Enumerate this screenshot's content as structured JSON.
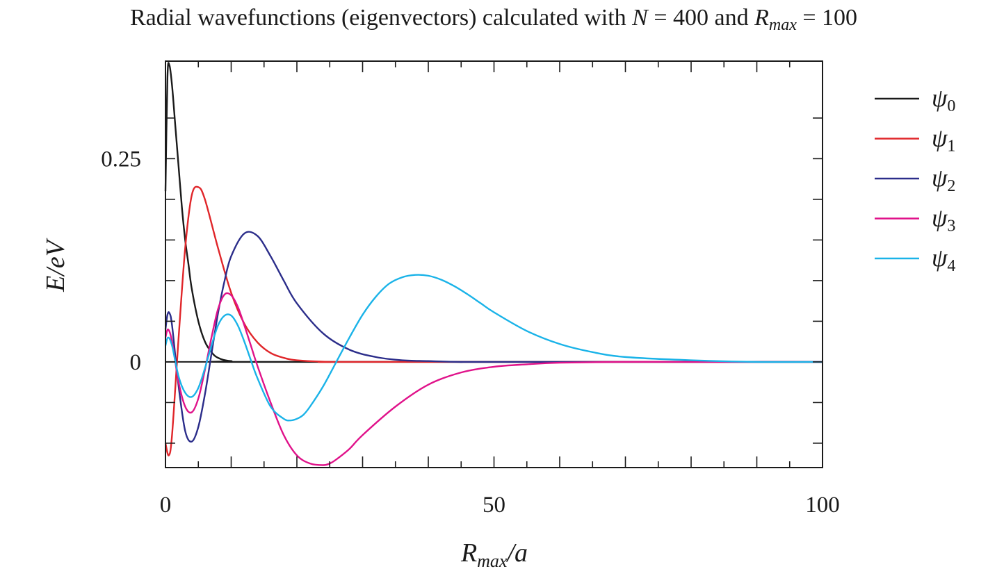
{
  "chart_data": {
    "type": "line",
    "title": "Radial wavefunctions (eigenvectors) calculated with N = 400 and Rmax = 100",
    "title_parts": {
      "prefix": "Radial wavefunctions (eigenvectors) calculated with ",
      "n_symbol": "N",
      "n_eq": " = 400 and ",
      "r_symbol": "R",
      "r_sub": "max",
      "r_eq": " = 100"
    },
    "xlabel": "Rmax/a",
    "xlabel_parts": {
      "base": "R",
      "sub": "max",
      "rest": "/a"
    },
    "ylabel": "E/eV",
    "xlim": [
      0,
      100
    ],
    "ylim": [
      -0.13,
      0.37
    ],
    "x_ticks": [
      0,
      50,
      100
    ],
    "x_tick_labels": [
      "0",
      "50",
      "100"
    ],
    "y_ticks": [
      0,
      0.25
    ],
    "y_tick_labels": [
      "0",
      "0.25"
    ],
    "grid": false,
    "legend_position": "right",
    "series": [
      {
        "name": "ψ0",
        "symbol": "ψ",
        "sub": "0",
        "color": "#1a1a1a",
        "x": [
          0,
          0.3,
          0.6,
          1,
          1.5,
          2,
          2.5,
          3,
          3.5,
          4,
          5,
          6,
          7,
          8,
          10,
          15,
          100
        ],
        "y": [
          0.21,
          0.35,
          0.365,
          0.34,
          0.29,
          0.24,
          0.19,
          0.15,
          0.12,
          0.09,
          0.05,
          0.025,
          0.012,
          0.005,
          0.001,
          0,
          0
        ]
      },
      {
        "name": "ψ1",
        "symbol": "ψ",
        "sub": "1",
        "color": "#e0262a",
        "x": [
          0,
          0.5,
          1,
          2,
          3,
          4,
          5,
          6,
          8,
          10,
          12,
          14,
          16,
          18,
          20,
          25,
          30,
          100
        ],
        "y": [
          -0.1,
          -0.115,
          -0.09,
          0.03,
          0.14,
          0.205,
          0.215,
          0.2,
          0.14,
          0.085,
          0.047,
          0.024,
          0.011,
          0.005,
          0.002,
          0,
          0,
          0
        ]
      },
      {
        "name": "ψ2",
        "symbol": "ψ",
        "sub": "2",
        "color": "#2b2d8a",
        "x": [
          0,
          0.3,
          0.6,
          1,
          2,
          3,
          4,
          5,
          6,
          7,
          8,
          9,
          10,
          12,
          14,
          16,
          18,
          20,
          24,
          28,
          32,
          36,
          40,
          45,
          50,
          100
        ],
        "y": [
          0.04,
          0.058,
          0.06,
          0.045,
          -0.03,
          -0.085,
          -0.098,
          -0.08,
          -0.04,
          0.01,
          0.06,
          0.1,
          0.13,
          0.158,
          0.155,
          0.13,
          0.1,
          0.072,
          0.035,
          0.015,
          0.006,
          0.002,
          0.001,
          0,
          0,
          0
        ]
      },
      {
        "name": "ψ3",
        "symbol": "ψ",
        "sub": "3",
        "color": "#e0128a",
        "x": [
          0,
          0.4,
          1,
          2,
          3,
          4,
          5,
          6,
          7,
          8,
          9,
          10,
          11,
          12,
          13,
          14,
          16,
          18,
          20,
          22,
          24,
          25,
          26,
          28,
          30,
          35,
          40,
          45,
          50,
          55,
          60,
          70,
          80,
          100
        ],
        "y": [
          0.03,
          0.04,
          0.025,
          -0.025,
          -0.055,
          -0.062,
          -0.045,
          -0.01,
          0.03,
          0.065,
          0.083,
          0.082,
          0.068,
          0.045,
          0.02,
          -0.005,
          -0.05,
          -0.09,
          -0.115,
          -0.125,
          -0.127,
          -0.125,
          -0.12,
          -0.107,
          -0.09,
          -0.055,
          -0.028,
          -0.013,
          -0.006,
          -0.003,
          -0.001,
          0,
          0,
          0
        ]
      },
      {
        "name": "ψ4",
        "symbol": "ψ",
        "sub": "4",
        "color": "#1ab3e8",
        "x": [
          0,
          0.4,
          1,
          2,
          3,
          4,
          5,
          6,
          7,
          8,
          9,
          10,
          11,
          12,
          13,
          14,
          16,
          18,
          19,
          20,
          21,
          22,
          24,
          26,
          28,
          30,
          32,
          34,
          36,
          38,
          40,
          42,
          44,
          46,
          48,
          50,
          55,
          60,
          65,
          70,
          80,
          90,
          100
        ],
        "y": [
          0.02,
          0.03,
          0.02,
          -0.018,
          -0.038,
          -0.043,
          -0.032,
          -0.008,
          0.02,
          0.045,
          0.057,
          0.057,
          0.045,
          0.025,
          0.002,
          -0.02,
          -0.055,
          -0.07,
          -0.072,
          -0.07,
          -0.065,
          -0.055,
          -0.03,
          0,
          0.03,
          0.058,
          0.08,
          0.096,
          0.104,
          0.107,
          0.106,
          0.101,
          0.093,
          0.083,
          0.072,
          0.061,
          0.038,
          0.022,
          0.012,
          0.006,
          0.002,
          0,
          0
        ]
      }
    ]
  }
}
